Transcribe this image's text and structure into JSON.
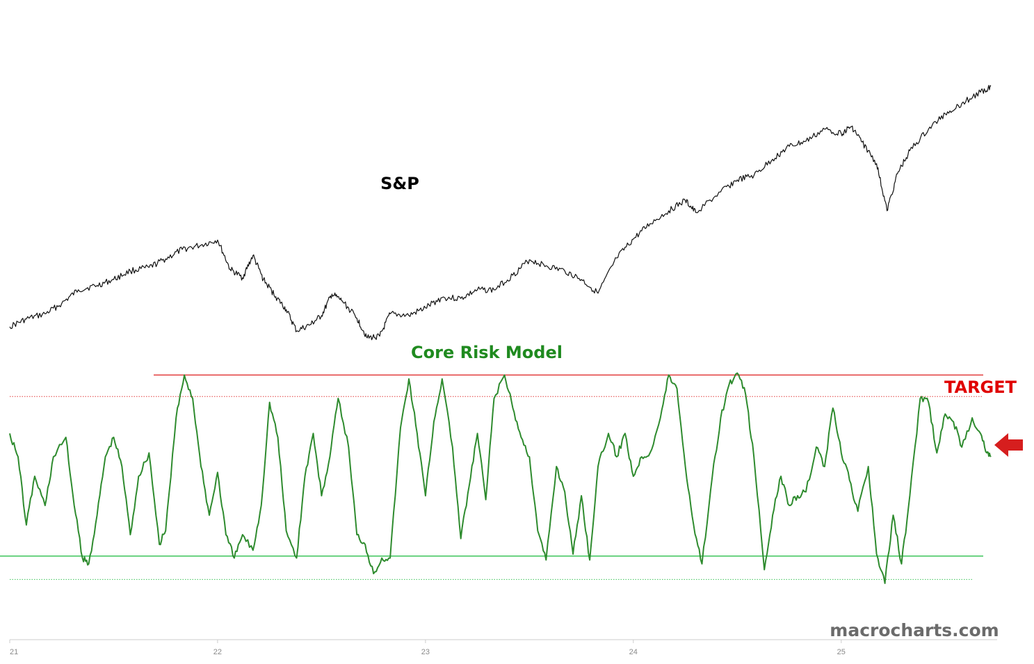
{
  "colors": {
    "sp_line": "#111111",
    "risk_line": "#2e8b2e",
    "upper_band": "#e23b3b",
    "lower_band": "#3cc45a",
    "target_text": "#e00000",
    "arrow": "#d61e1e",
    "axis": "#cccccc",
    "watermark": "#6b6b6b"
  },
  "labels": {
    "sp": "S&P",
    "core_risk_model": "Core Risk Model",
    "target": "TARGET",
    "watermark": "macrocharts.com"
  },
  "chart_data": {
    "type": "line",
    "title": "",
    "xlabel": "",
    "ylabel": "",
    "x_ticks": [
      "21",
      "22",
      "23",
      "24",
      "25"
    ],
    "x_range": [
      21.0,
      25.75
    ],
    "grid": false,
    "series": [
      {
        "name": "S&P",
        "relative_scale": true,
        "points": [
          [
            21.0,
            3750
          ],
          [
            21.08,
            3840
          ],
          [
            21.17,
            3900
          ],
          [
            21.25,
            4020
          ],
          [
            21.33,
            4180
          ],
          [
            21.42,
            4230
          ],
          [
            21.5,
            4300
          ],
          [
            21.58,
            4400
          ],
          [
            21.67,
            4440
          ],
          [
            21.75,
            4540
          ],
          [
            21.83,
            4650
          ],
          [
            21.92,
            4700
          ],
          [
            22.0,
            4760
          ],
          [
            22.06,
            4420
          ],
          [
            22.12,
            4320
          ],
          [
            22.17,
            4580
          ],
          [
            22.22,
            4300
          ],
          [
            22.28,
            4100
          ],
          [
            22.33,
            3950
          ],
          [
            22.38,
            3700
          ],
          [
            22.45,
            3780
          ],
          [
            22.5,
            3880
          ],
          [
            22.55,
            4130
          ],
          [
            22.6,
            4050
          ],
          [
            22.67,
            3850
          ],
          [
            22.72,
            3620
          ],
          [
            22.78,
            3640
          ],
          [
            22.83,
            3900
          ],
          [
            22.92,
            3880
          ],
          [
            23.0,
            3970
          ],
          [
            23.08,
            4090
          ],
          [
            23.17,
            4080
          ],
          [
            23.25,
            4180
          ],
          [
            23.33,
            4180
          ],
          [
            23.42,
            4350
          ],
          [
            23.5,
            4530
          ],
          [
            23.58,
            4460
          ],
          [
            23.67,
            4400
          ],
          [
            23.75,
            4300
          ],
          [
            23.83,
            4140
          ],
          [
            23.92,
            4550
          ],
          [
            24.0,
            4770
          ],
          [
            24.08,
            4950
          ],
          [
            24.17,
            5100
          ],
          [
            24.25,
            5220
          ],
          [
            24.3,
            5080
          ],
          [
            24.42,
            5320
          ],
          [
            24.5,
            5460
          ],
          [
            24.58,
            5510
          ],
          [
            24.67,
            5700
          ],
          [
            24.75,
            5850
          ],
          [
            24.83,
            5910
          ],
          [
            24.92,
            6050
          ],
          [
            25.0,
            6000
          ],
          [
            25.05,
            6080
          ],
          [
            25.1,
            5900
          ],
          [
            25.17,
            5650
          ],
          [
            25.22,
            5100
          ],
          [
            25.27,
            5530
          ],
          [
            25.33,
            5800
          ],
          [
            25.42,
            6050
          ],
          [
            25.5,
            6230
          ],
          [
            25.58,
            6350
          ],
          [
            25.67,
            6480
          ],
          [
            25.72,
            6550
          ]
        ]
      },
      {
        "name": "Core Risk Model",
        "relative_scale": true,
        "bands": {
          "upper_solid": 1.02,
          "upper_dotted": 0.91,
          "lower_solid": 0.09,
          "lower_dotted": -0.03
        },
        "target_level": 1.02,
        "latest_value": 0.6,
        "points": [
          [
            21.0,
            0.72
          ],
          [
            21.04,
            0.6
          ],
          [
            21.08,
            0.25
          ],
          [
            21.12,
            0.5
          ],
          [
            21.17,
            0.35
          ],
          [
            21.21,
            0.6
          ],
          [
            21.27,
            0.7
          ],
          [
            21.31,
            0.35
          ],
          [
            21.35,
            0.08
          ],
          [
            21.38,
            0.05
          ],
          [
            21.42,
            0.3
          ],
          [
            21.46,
            0.6
          ],
          [
            21.5,
            0.7
          ],
          [
            21.54,
            0.55
          ],
          [
            21.58,
            0.2
          ],
          [
            21.62,
            0.5
          ],
          [
            21.67,
            0.62
          ],
          [
            21.72,
            0.15
          ],
          [
            21.75,
            0.22
          ],
          [
            21.8,
            0.8
          ],
          [
            21.84,
            1.02
          ],
          [
            21.88,
            0.9
          ],
          [
            21.92,
            0.55
          ],
          [
            21.96,
            0.3
          ],
          [
            22.0,
            0.52
          ],
          [
            22.04,
            0.2
          ],
          [
            22.08,
            0.08
          ],
          [
            22.12,
            0.2
          ],
          [
            22.17,
            0.12
          ],
          [
            22.21,
            0.35
          ],
          [
            22.25,
            0.88
          ],
          [
            22.29,
            0.7
          ],
          [
            22.33,
            0.22
          ],
          [
            22.38,
            0.08
          ],
          [
            22.42,
            0.5
          ],
          [
            22.46,
            0.72
          ],
          [
            22.5,
            0.4
          ],
          [
            22.54,
            0.6
          ],
          [
            22.58,
            0.9
          ],
          [
            22.63,
            0.65
          ],
          [
            22.67,
            0.2
          ],
          [
            22.71,
            0.15
          ],
          [
            22.75,
            0.0
          ],
          [
            22.79,
            0.08
          ],
          [
            22.83,
            0.08
          ],
          [
            22.88,
            0.75
          ],
          [
            22.92,
            1.0
          ],
          [
            22.96,
            0.72
          ],
          [
            23.0,
            0.4
          ],
          [
            23.04,
            0.78
          ],
          [
            23.08,
            1.0
          ],
          [
            23.13,
            0.65
          ],
          [
            23.17,
            0.18
          ],
          [
            23.21,
            0.45
          ],
          [
            23.25,
            0.72
          ],
          [
            23.29,
            0.38
          ],
          [
            23.33,
            0.9
          ],
          [
            23.38,
            1.02
          ],
          [
            23.42,
            0.85
          ],
          [
            23.46,
            0.7
          ],
          [
            23.5,
            0.6
          ],
          [
            23.54,
            0.22
          ],
          [
            23.58,
            0.07
          ],
          [
            23.63,
            0.55
          ],
          [
            23.67,
            0.42
          ],
          [
            23.71,
            0.1
          ],
          [
            23.75,
            0.4
          ],
          [
            23.79,
            0.07
          ],
          [
            23.83,
            0.55
          ],
          [
            23.88,
            0.72
          ],
          [
            23.92,
            0.6
          ],
          [
            23.96,
            0.72
          ],
          [
            24.0,
            0.5
          ],
          [
            24.04,
            0.6
          ],
          [
            24.08,
            0.62
          ],
          [
            24.13,
            0.8
          ],
          [
            24.17,
            1.02
          ],
          [
            24.21,
            0.95
          ],
          [
            24.25,
            0.55
          ],
          [
            24.29,
            0.25
          ],
          [
            24.33,
            0.05
          ],
          [
            24.38,
            0.5
          ],
          [
            24.42,
            0.8
          ],
          [
            24.46,
            0.97
          ],
          [
            24.5,
            1.03
          ],
          [
            24.54,
            0.92
          ],
          [
            24.58,
            0.6
          ],
          [
            24.63,
            0.02
          ],
          [
            24.67,
            0.3
          ],
          [
            24.71,
            0.5
          ],
          [
            24.75,
            0.35
          ],
          [
            24.79,
            0.4
          ],
          [
            24.83,
            0.42
          ],
          [
            24.88,
            0.65
          ],
          [
            24.92,
            0.55
          ],
          [
            24.96,
            0.85
          ],
          [
            25.0,
            0.62
          ],
          [
            25.04,
            0.48
          ],
          [
            25.08,
            0.32
          ],
          [
            25.13,
            0.55
          ],
          [
            25.17,
            0.1
          ],
          [
            25.21,
            -0.05
          ],
          [
            25.25,
            0.3
          ],
          [
            25.29,
            0.05
          ],
          [
            25.33,
            0.4
          ],
          [
            25.38,
            0.9
          ],
          [
            25.42,
            0.88
          ],
          [
            25.46,
            0.62
          ],
          [
            25.5,
            0.82
          ],
          [
            25.54,
            0.78
          ],
          [
            25.58,
            0.65
          ],
          [
            25.63,
            0.8
          ],
          [
            25.67,
            0.72
          ],
          [
            25.7,
            0.62
          ],
          [
            25.72,
            0.6
          ]
        ]
      }
    ]
  }
}
